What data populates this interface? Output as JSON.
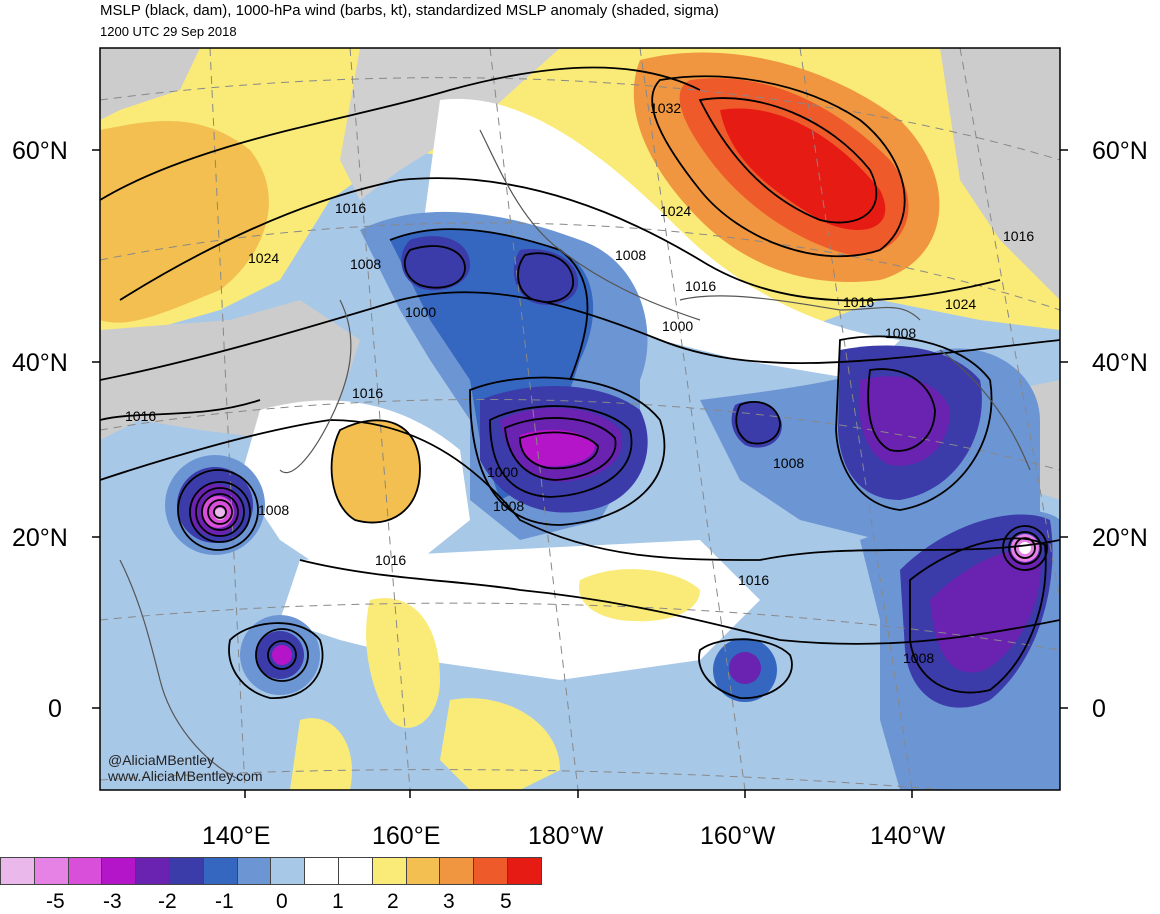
{
  "title": "MSLP (black, dam), 1000-hPa wind (barbs, kt), standardized MSLP anomaly (shaded, sigma)",
  "subtitle": "1200 UTC 29 Sep 2018",
  "lat_labels": [
    "60°N",
    "40°N",
    "20°N",
    "0"
  ],
  "lon_labels": [
    "140°E",
    "160°E",
    "180°W",
    "160°W",
    "140°W"
  ],
  "isobar_labels": [
    "1032",
    "1024",
    "1016",
    "1008",
    "1000",
    "1024",
    "1008",
    "1016",
    "1016",
    "1000",
    "1016",
    "1008",
    "1016",
    "1024",
    "1016",
    "1008",
    "1016",
    "1016",
    "1008",
    "1000",
    "1008",
    "1008",
    "1016",
    "1008",
    "1016"
  ],
  "credit": {
    "handle": "@AliciaMBentley",
    "website": "www.AliciaMBentley.com"
  },
  "colorbar": {
    "colors": [
      "#eab8ea",
      "#e682e6",
      "#d94fd9",
      "#b515c9",
      "#6a22b0",
      "#3b3baa",
      "#3566c0",
      "#6c95d4",
      "#a8c8e8",
      "#ffffff",
      "#ffffff",
      "#faeb78",
      "#f2bf50",
      "#f09640",
      "#ef5a2a",
      "#e61b14",
      "#a00808",
      "#6e2626",
      "#716a6a",
      "#aba4a4"
    ],
    "labels": [
      "-5",
      "-3",
      "-2",
      "-1",
      "0",
      "1",
      "2",
      "3",
      "5"
    ]
  }
}
